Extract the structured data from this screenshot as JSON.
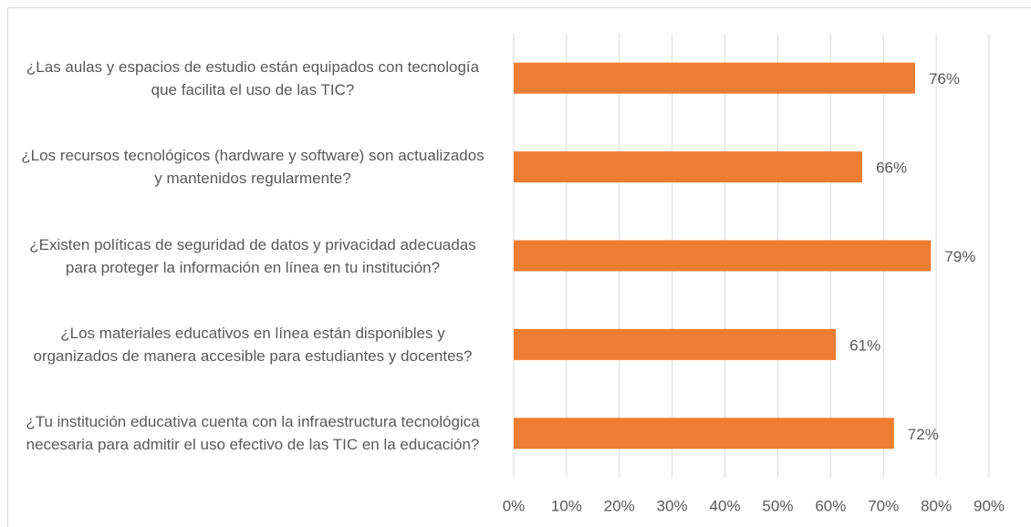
{
  "chart_data": {
    "type": "bar",
    "orientation": "horizontal",
    "categories": [
      "¿Las aulas y espacios de estudio están equipados con tecnología que facilita el uso de las TIC?",
      "¿Los recursos tecnológicos (hardware y software) son actualizados y mantenidos regularmente?",
      "¿Existen políticas de seguridad de datos y privacidad adecuadas para proteger la información en línea en tu institución?",
      "¿Los materiales educativos en línea están disponibles y organizados de manera accesible para estudiantes y docentes?",
      "¿Tu institución educativa cuenta con la infraestructura tecnológica necesaria para admitir el uso efectivo de las TIC en la educación?"
    ],
    "values": [
      76,
      66,
      79,
      61,
      72
    ],
    "value_labels": [
      "76%",
      "66%",
      "79%",
      "61%",
      "72%"
    ],
    "color": "#ed7d31",
    "xlim": [
      0,
      90
    ],
    "xticks": [
      {
        "value": 0,
        "label": "0%"
      },
      {
        "value": 10,
        "label": "10%"
      },
      {
        "value": 20,
        "label": "20%"
      },
      {
        "value": 30,
        "label": "30%"
      },
      {
        "value": 40,
        "label": "40%"
      },
      {
        "value": 50,
        "label": "50%"
      },
      {
        "value": 60,
        "label": "60%"
      },
      {
        "value": 70,
        "label": "70%"
      },
      {
        "value": 80,
        "label": "80%"
      },
      {
        "value": 90,
        "label": "90%"
      }
    ],
    "grid": true
  }
}
